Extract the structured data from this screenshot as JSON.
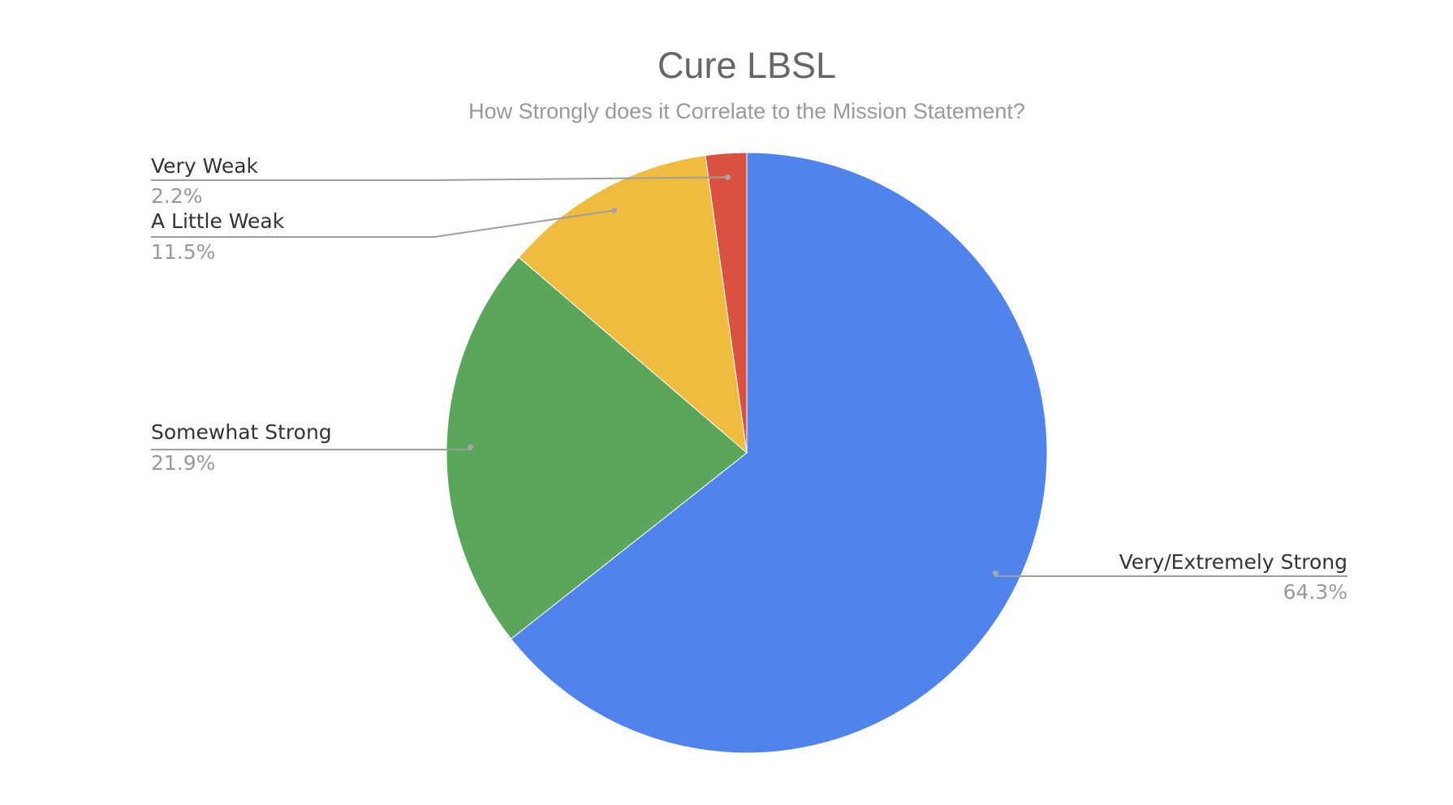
{
  "chart_data": {
    "type": "pie",
    "title": "Cure LBSL",
    "subtitle": "How Strongly does it Correlate to the Mission Statement?",
    "slices": [
      {
        "label": "Very/Extremely Strong",
        "value": 64.3,
        "display": "64.3%",
        "color": "#5183ec"
      },
      {
        "label": "Somewhat Strong",
        "value": 21.9,
        "display": "21.9%",
        "color": "#5aa65b"
      },
      {
        "label": "A Little Weak",
        "value": 11.5,
        "display": "11.5%",
        "color": "#f0bc40"
      },
      {
        "label": "Very Weak",
        "value": 2.2,
        "display": "2.2%",
        "color": "#d95140"
      }
    ],
    "start": "12 o'clock",
    "direction": "clockwise",
    "legend": "leader-line labels"
  }
}
